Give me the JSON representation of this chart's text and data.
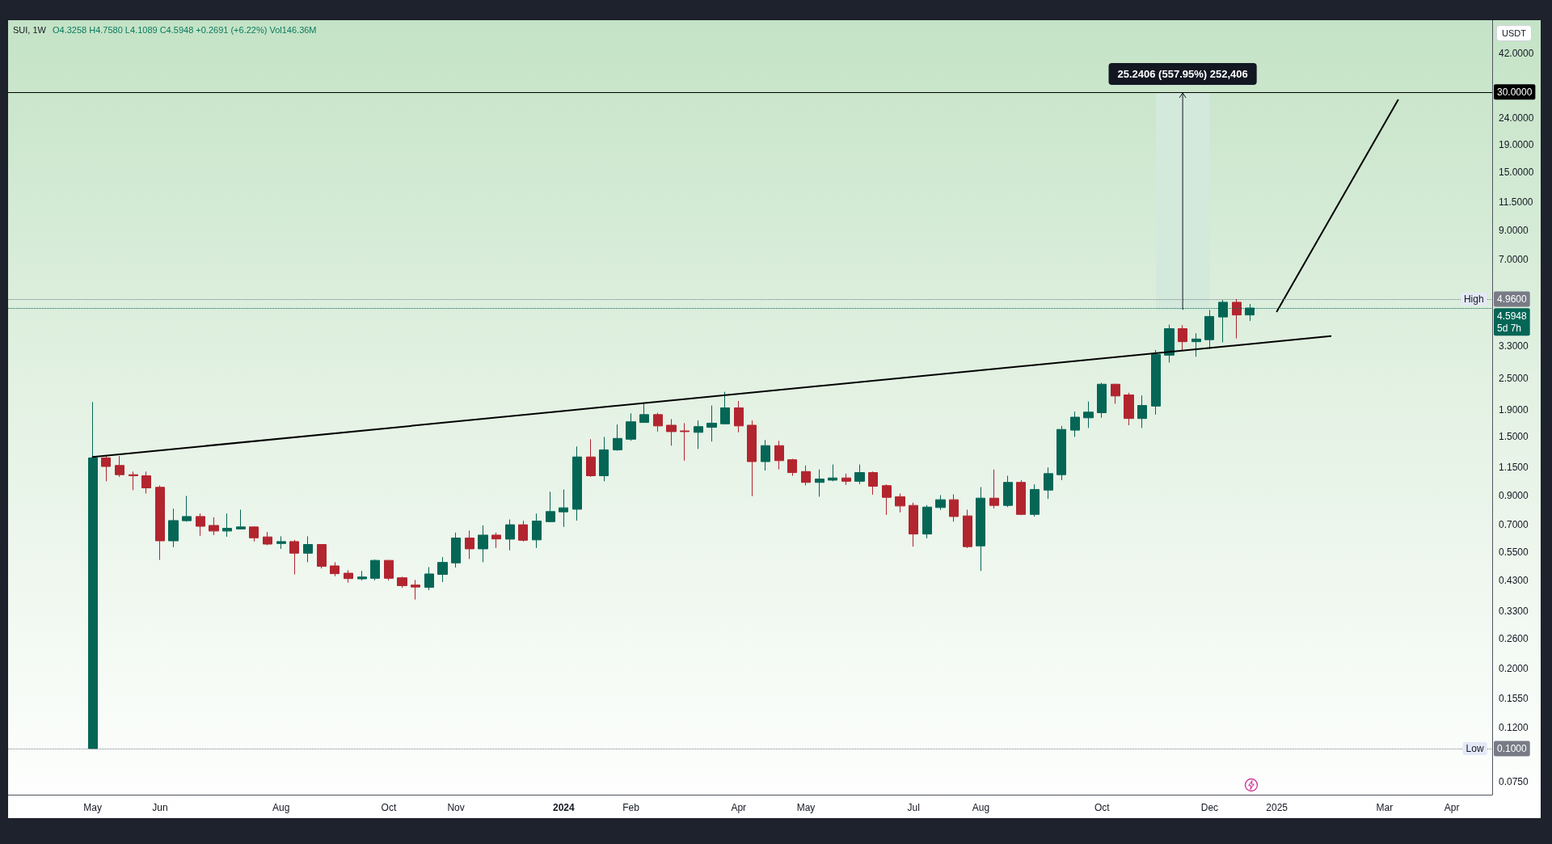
{
  "chart_data": {
    "type": "candlestick",
    "title": "SUI, 1W",
    "subtitle": "O4.3258 H4.7580 L4.1089 C4.5948 +0.2691 (+6.22%) Vol146.36M",
    "ylabel": "USDT",
    "x": [
      "2023-05-01",
      "2023-05-08",
      "2023-05-15",
      "2023-05-22",
      "2023-05-29",
      "2023-06-05",
      "2023-06-12",
      "2023-06-19",
      "2023-06-26",
      "2023-07-03",
      "2023-07-10",
      "2023-07-17",
      "2023-07-24",
      "2023-07-31",
      "2023-08-07",
      "2023-08-14",
      "2023-08-21",
      "2023-08-28",
      "2023-09-04",
      "2023-09-11",
      "2023-09-18",
      "2023-09-25",
      "2023-10-02",
      "2023-10-09",
      "2023-10-16",
      "2023-10-23",
      "2023-10-30",
      "2023-11-06",
      "2023-11-13",
      "2023-11-20",
      "2023-11-27",
      "2023-12-04",
      "2023-12-11",
      "2023-12-18",
      "2023-12-25",
      "2024-01-01",
      "2024-01-08",
      "2024-01-15",
      "2024-01-22",
      "2024-01-29",
      "2024-02-05",
      "2024-02-12",
      "2024-02-19",
      "2024-02-26",
      "2024-03-04",
      "2024-03-11",
      "2024-03-18",
      "2024-03-25",
      "2024-04-01",
      "2024-04-08",
      "2024-04-15",
      "2024-04-22",
      "2024-04-29",
      "2024-05-06",
      "2024-05-13",
      "2024-05-20",
      "2024-05-27",
      "2024-06-03",
      "2024-06-10",
      "2024-06-17",
      "2024-06-24",
      "2024-07-01",
      "2024-07-08",
      "2024-07-15",
      "2024-07-22",
      "2024-07-29",
      "2024-08-05",
      "2024-08-12",
      "2024-08-19",
      "2024-08-26",
      "2024-09-02",
      "2024-09-09",
      "2024-09-16",
      "2024-09-23",
      "2024-09-30",
      "2024-10-07",
      "2024-10-14",
      "2024-10-21",
      "2024-10-28",
      "2024-11-04",
      "2024-11-11",
      "2024-11-18",
      "2024-11-25",
      "2024-12-02",
      "2024-12-09",
      "2024-12-16",
      "2024-12-23"
    ],
    "ohlc": [
      [
        0.1,
        2.03,
        0.1,
        1.25
      ],
      [
        1.25,
        1.27,
        1.02,
        1.16
      ],
      [
        1.17,
        1.27,
        1.06,
        1.08
      ],
      [
        1.08,
        1.11,
        0.945,
        1.07
      ],
      [
        1.07,
        1.11,
        0.917,
        0.963
      ],
      [
        0.968,
        0.984,
        0.515,
        0.608
      ],
      [
        0.608,
        0.804,
        0.575,
        0.725
      ],
      [
        0.724,
        0.898,
        0.718,
        0.751
      ],
      [
        0.751,
        0.771,
        0.635,
        0.69
      ],
      [
        0.695,
        0.746,
        0.639,
        0.662
      ],
      [
        0.662,
        0.771,
        0.63,
        0.678
      ],
      [
        0.674,
        0.797,
        0.672,
        0.686
      ],
      [
        0.686,
        0.689,
        0.604,
        0.624
      ],
      [
        0.629,
        0.657,
        0.585,
        0.591
      ],
      [
        0.594,
        0.632,
        0.567,
        0.604
      ],
      [
        0.604,
        0.613,
        0.454,
        0.546
      ],
      [
        0.546,
        0.632,
        0.505,
        0.589
      ],
      [
        0.589,
        0.591,
        0.478,
        0.487
      ],
      [
        0.489,
        0.505,
        0.447,
        0.457
      ],
      [
        0.459,
        0.471,
        0.423,
        0.438
      ],
      [
        0.437,
        0.468,
        0.431,
        0.444
      ],
      [
        0.439,
        0.517,
        0.431,
        0.513
      ],
      [
        0.513,
        0.514,
        0.431,
        0.439
      ],
      [
        0.441,
        0.445,
        0.404,
        0.412
      ],
      [
        0.414,
        0.433,
        0.365,
        0.407
      ],
      [
        0.406,
        0.484,
        0.396,
        0.456
      ],
      [
        0.454,
        0.528,
        0.425,
        0.504
      ],
      [
        0.502,
        0.653,
        0.482,
        0.623
      ],
      [
        0.623,
        0.665,
        0.519,
        0.567
      ],
      [
        0.567,
        0.695,
        0.505,
        0.639
      ],
      [
        0.639,
        0.653,
        0.571,
        0.618
      ],
      [
        0.617,
        0.732,
        0.56,
        0.699
      ],
      [
        0.699,
        0.724,
        0.604,
        0.611
      ],
      [
        0.613,
        0.771,
        0.571,
        0.722
      ],
      [
        0.718,
        0.932,
        0.715,
        0.784
      ],
      [
        0.782,
        0.95,
        0.686,
        0.81
      ],
      [
        0.8,
        1.38,
        0.725,
        1.26
      ],
      [
        1.26,
        1.47,
        1.06,
        1.07
      ],
      [
        1.07,
        1.5,
        1.02,
        1.34
      ],
      [
        1.34,
        1.67,
        1.33,
        1.48
      ],
      [
        1.47,
        1.84,
        1.45,
        1.71
      ],
      [
        1.7,
        2,
        1.7,
        1.82
      ],
      [
        1.82,
        1.85,
        1.57,
        1.65
      ],
      [
        1.66,
        1.75,
        1.39,
        1.57
      ],
      [
        1.58,
        1.69,
        1.22,
        1.57
      ],
      [
        1.56,
        1.73,
        1.35,
        1.64
      ],
      [
        1.63,
        1.97,
        1.44,
        1.69
      ],
      [
        1.68,
        2.22,
        1.68,
        1.93
      ],
      [
        1.93,
        2.05,
        1.56,
        1.65
      ],
      [
        1.66,
        1.73,
        0.896,
        1.21
      ],
      [
        1.21,
        1.46,
        1.12,
        1.39
      ],
      [
        1.39,
        1.45,
        1.13,
        1.22
      ],
      [
        1.23,
        1.24,
        1.07,
        1.1
      ],
      [
        1.11,
        1.17,
        0.984,
        1.01
      ],
      [
        1.01,
        1.13,
        0.892,
        1.04
      ],
      [
        1.03,
        1.18,
        1.02,
        1.05
      ],
      [
        1.05,
        1.09,
        0.988,
        1.02
      ],
      [
        1.02,
        1.18,
        0.995,
        1.1
      ],
      [
        1.1,
        1.11,
        0.908,
        0.977
      ],
      [
        0.982,
        0.993,
        0.762,
        0.887
      ],
      [
        0.892,
        0.917,
        0.778,
        0.823
      ],
      [
        0.827,
        0.847,
        0.578,
        0.645
      ],
      [
        0.645,
        0.829,
        0.621,
        0.815
      ],
      [
        0.812,
        0.904,
        0.795,
        0.869
      ],
      [
        0.869,
        0.911,
        0.718,
        0.751
      ],
      [
        0.755,
        0.797,
        0.571,
        0.578
      ],
      [
        0.582,
        0.97,
        0.468,
        0.881
      ],
      [
        0.881,
        1.13,
        0.806,
        0.827
      ],
      [
        0.827,
        1.07,
        0.815,
        1.01
      ],
      [
        1.01,
        1.03,
        0.76,
        0.765
      ],
      [
        0.765,
        0.993,
        0.751,
        0.95
      ],
      [
        0.945,
        1.15,
        0.875,
        1.09
      ],
      [
        1.08,
        1.65,
        1.03,
        1.6
      ],
      [
        1.59,
        1.87,
        1.5,
        1.78
      ],
      [
        1.77,
        2.04,
        1.62,
        1.86
      ],
      [
        1.85,
        2.4,
        1.77,
        2.37
      ],
      [
        2.37,
        2.38,
        2,
        2.14
      ],
      [
        2.16,
        2.2,
        1.66,
        1.76
      ],
      [
        1.76,
        2.15,
        1.62,
        1.97
      ],
      [
        1.96,
        3.19,
        1.82,
        3.07
      ],
      [
        3.05,
        3.98,
        2.86,
        3.84
      ],
      [
        3.84,
        3.96,
        3.17,
        3.43
      ],
      [
        3.43,
        3.69,
        3.01,
        3.51
      ],
      [
        3.49,
        4.52,
        3.22,
        4.27
      ],
      [
        4.25,
        4.93,
        3.41,
        4.83
      ],
      [
        4.83,
        4.96,
        3.53,
        4.3258
      ],
      [
        4.3258,
        4.758,
        4.1089,
        4.5948
      ]
    ],
    "colors": [
      "#056656",
      "#b2252f",
      "#b2252f",
      "#b2252f",
      "#b2252f",
      "#b2252f",
      "#056656",
      "#056656",
      "#b2252f",
      "#b2252f",
      "#056656",
      "#056656",
      "#b2252f",
      "#b2252f",
      "#056656",
      "#b2252f",
      "#056656",
      "#b2252f",
      "#b2252f",
      "#b2252f",
      "#056656",
      "#056656",
      "#b2252f",
      "#b2252f",
      "#b2252f",
      "#056656",
      "#056656",
      "#056656",
      "#b2252f",
      "#056656",
      "#b2252f",
      "#056656",
      "#b2252f",
      "#056656",
      "#056656",
      "#056656",
      "#056656",
      "#b2252f",
      "#056656",
      "#056656",
      "#056656",
      "#056656",
      "#b2252f",
      "#b2252f",
      "#b2252f",
      "#056656",
      "#056656",
      "#056656",
      "#b2252f",
      "#b2252f",
      "#056656",
      "#b2252f",
      "#b2252f",
      "#b2252f",
      "#056656",
      "#056656",
      "#b2252f",
      "#056656",
      "#b2252f",
      "#b2252f",
      "#b2252f",
      "#b2252f",
      "#056656",
      "#056656",
      "#b2252f",
      "#b2252f",
      "#056656",
      "#b2252f",
      "#056656",
      "#b2252f",
      "#056656",
      "#056656",
      "#056656",
      "#056656",
      "#056656",
      "#056656",
      "#b2252f",
      "#b2252f",
      "#056656",
      "#056656",
      "#056656",
      "#b2252f",
      "#056656",
      "#056656",
      "#056656",
      "#b2252f",
      "#056656"
    ],
    "series": [
      {
        "type": "bar",
        "x": [
          "2024-11-18"
        ],
        "base": [
          4.5238
        ],
        "values": [
          25.2406
        ],
        "value_labels": [
          "25.2406 (557.95%) 252,406"
        ],
        "color": "#d3e9dc"
      },
      {
        "type": "line",
        "x": [
          "2023-05-01",
          "2025-02-03"
        ],
        "values": [
          1.26,
          3.6
        ],
        "color": "#000000"
      },
      {
        "type": "line",
        "x": [
          "2025-01-06",
          "2025-03-10"
        ],
        "values": [
          4.46,
          28
        ],
        "color": "#000000"
      }
    ],
    "ref_lines": [
      {
        "axis": "y",
        "value": 30,
        "label": "30.0000",
        "color": "#000000"
      },
      {
        "axis": "y",
        "value": 4.96,
        "label": "4.9600",
        "color": "#787b86",
        "line_style": "dotted"
      },
      {
        "axis": "y",
        "value": 4.5948,
        "label": "4.5948\n5d 7h",
        "color": "#056656",
        "line_style": "dotted"
      },
      {
        "axis": "y",
        "value": 0.1,
        "label": "0.1000",
        "color": "#787b86",
        "line_style": "dotted"
      }
    ],
    "annotations": [
      {
        "text": "High",
        "x": "2025-04-27",
        "y": 4.96
      },
      {
        "text": "Low",
        "x": "2025-04-27",
        "y": 0.1
      }
    ],
    "xlim": [
      "2023-03-18",
      "2025-04-28"
    ],
    "xticks": [
      {
        "value": "2023-05-01",
        "label": "May"
      },
      {
        "value": "2023-06-05",
        "label": "Jun"
      },
      {
        "value": "2023-08-07",
        "label": "Aug"
      },
      {
        "value": "2023-10-02",
        "label": "Oct"
      },
      {
        "value": "2023-11-06",
        "label": "Nov"
      },
      {
        "value": "2024-01-01",
        "label": "2024"
      },
      {
        "value": "2024-02-05",
        "label": "Feb"
      },
      {
        "value": "2024-04-01",
        "label": "Apr"
      },
      {
        "value": "2024-05-06",
        "label": "May"
      },
      {
        "value": "2024-07-01",
        "label": "Jul"
      },
      {
        "value": "2024-08-05",
        "label": "Aug"
      },
      {
        "value": "2024-10-07",
        "label": "Oct"
      },
      {
        "value": "2024-12-02",
        "label": "Dec"
      },
      {
        "value": "2025-01-06",
        "label": "2025"
      },
      {
        "value": "2025-03-03",
        "label": "Mar"
      },
      {
        "value": "2025-04-07",
        "label": "Apr"
      }
    ],
    "ylim": [
      0.067,
      56
    ],
    "log": true,
    "yticks": [
      {
        "value": 0.075,
        "label": "0.0750"
      },
      {
        "value": 0.12,
        "label": "0.1200"
      },
      {
        "value": 0.155,
        "label": "0.1550"
      },
      {
        "value": 0.2,
        "label": "0.2000"
      },
      {
        "value": 0.26,
        "label": "0.2600"
      },
      {
        "value": 0.33,
        "label": "0.3300"
      },
      {
        "value": 0.43,
        "label": "0.4300"
      },
      {
        "value": 0.55,
        "label": "0.5500"
      },
      {
        "value": 0.7,
        "label": "0.7000"
      },
      {
        "value": 0.9,
        "label": "0.9000"
      },
      {
        "value": 1.15,
        "label": "1.1500"
      },
      {
        "value": 1.5,
        "label": "1.5000"
      },
      {
        "value": 1.9,
        "label": "1.9000"
      },
      {
        "value": 2.5,
        "label": "2.5000"
      },
      {
        "value": 3.3,
        "label": "3.3000"
      },
      {
        "value": 7,
        "label": "7.0000"
      },
      {
        "value": 9,
        "label": "9.0000"
      },
      {
        "value": 11.5,
        "label": "11.5000"
      },
      {
        "value": 15,
        "label": "15.0000"
      },
      {
        "value": 19,
        "label": "19.0000"
      },
      {
        "value": 24,
        "label": "24.0000"
      },
      {
        "value": 42,
        "label": "42.0000"
      }
    ]
  }
}
